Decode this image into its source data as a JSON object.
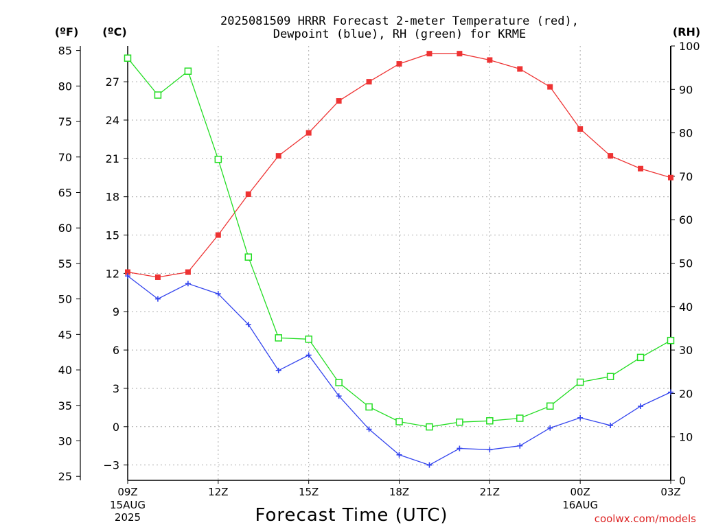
{
  "title_line1": "2025081509 HRRR Forecast 2-meter Temperature (red),",
  "title_line2": "Dewpoint (blue), RH (green) for KRME",
  "unit_f": "(ºF)",
  "unit_c": "(ºC)",
  "unit_rh": "(RH)",
  "xlabel": "Forecast Time (UTC)",
  "credit": "coolwx.com/models",
  "colors": {
    "temperature": "#ee3333",
    "dewpoint": "#3344ee",
    "rh": "#22dd22",
    "grid": "#aaaaaa"
  },
  "chart_data": {
    "type": "line",
    "x_ticks": [
      {
        "hour": 0,
        "label": "09Z",
        "sub1": "15AUG",
        "sub2": "2025"
      },
      {
        "hour": 3,
        "label": "12Z",
        "sub1": "",
        "sub2": ""
      },
      {
        "hour": 6,
        "label": "15Z",
        "sub1": "",
        "sub2": ""
      },
      {
        "hour": 9,
        "label": "18Z",
        "sub1": "",
        "sub2": ""
      },
      {
        "hour": 12,
        "label": "21Z",
        "sub1": "",
        "sub2": ""
      },
      {
        "hour": 15,
        "label": "00Z",
        "sub1": "16AUG",
        "sub2": ""
      },
      {
        "hour": 18,
        "label": "03Z",
        "sub1": "",
        "sub2": ""
      }
    ],
    "x_range": [
      0,
      18
    ],
    "celsius_axis": {
      "range": [
        -4.2,
        29.8
      ],
      "ticks": [
        "-3",
        "0",
        "3",
        "6",
        "9",
        "12",
        "15",
        "18",
        "21",
        "24",
        "27"
      ]
    },
    "fahrenheit_axis": {
      "ticks": [
        "25",
        "30",
        "35",
        "40",
        "45",
        "50",
        "55",
        "60",
        "65",
        "70",
        "75",
        "80",
        "85"
      ]
    },
    "rh_axis": {
      "range": [
        0,
        100
      ],
      "ticks": [
        "0",
        "10",
        "20",
        "30",
        "40",
        "50",
        "60",
        "70",
        "80",
        "90",
        "100"
      ]
    },
    "series": [
      {
        "key": "temperature",
        "axis": "celsius",
        "marker": "filled-square",
        "values": [
          12.1,
          11.7,
          12.1,
          15.0,
          18.2,
          21.2,
          23.0,
          25.5,
          27.0,
          28.4,
          29.2,
          29.2,
          28.7,
          28.0,
          26.6,
          23.3,
          21.2,
          20.2,
          19.5
        ]
      },
      {
        "key": "dewpoint",
        "axis": "celsius",
        "marker": "plus",
        "values": [
          11.8,
          10.0,
          11.2,
          10.4,
          8.0,
          4.4,
          5.6,
          2.4,
          -0.2,
          -2.2,
          -3.0,
          -1.7,
          -1.8,
          -1.5,
          -0.1,
          0.7,
          0.1,
          1.6,
          2.7
        ]
      },
      {
        "key": "rh",
        "axis": "rh",
        "marker": "open-square",
        "values": [
          97.2,
          88.7,
          94.2,
          73.9,
          51.4,
          32.8,
          32.5,
          22.5,
          16.9,
          13.5,
          12.3,
          13.4,
          13.7,
          14.3,
          17.1,
          22.6,
          23.9,
          28.3,
          32.2
        ]
      }
    ]
  }
}
